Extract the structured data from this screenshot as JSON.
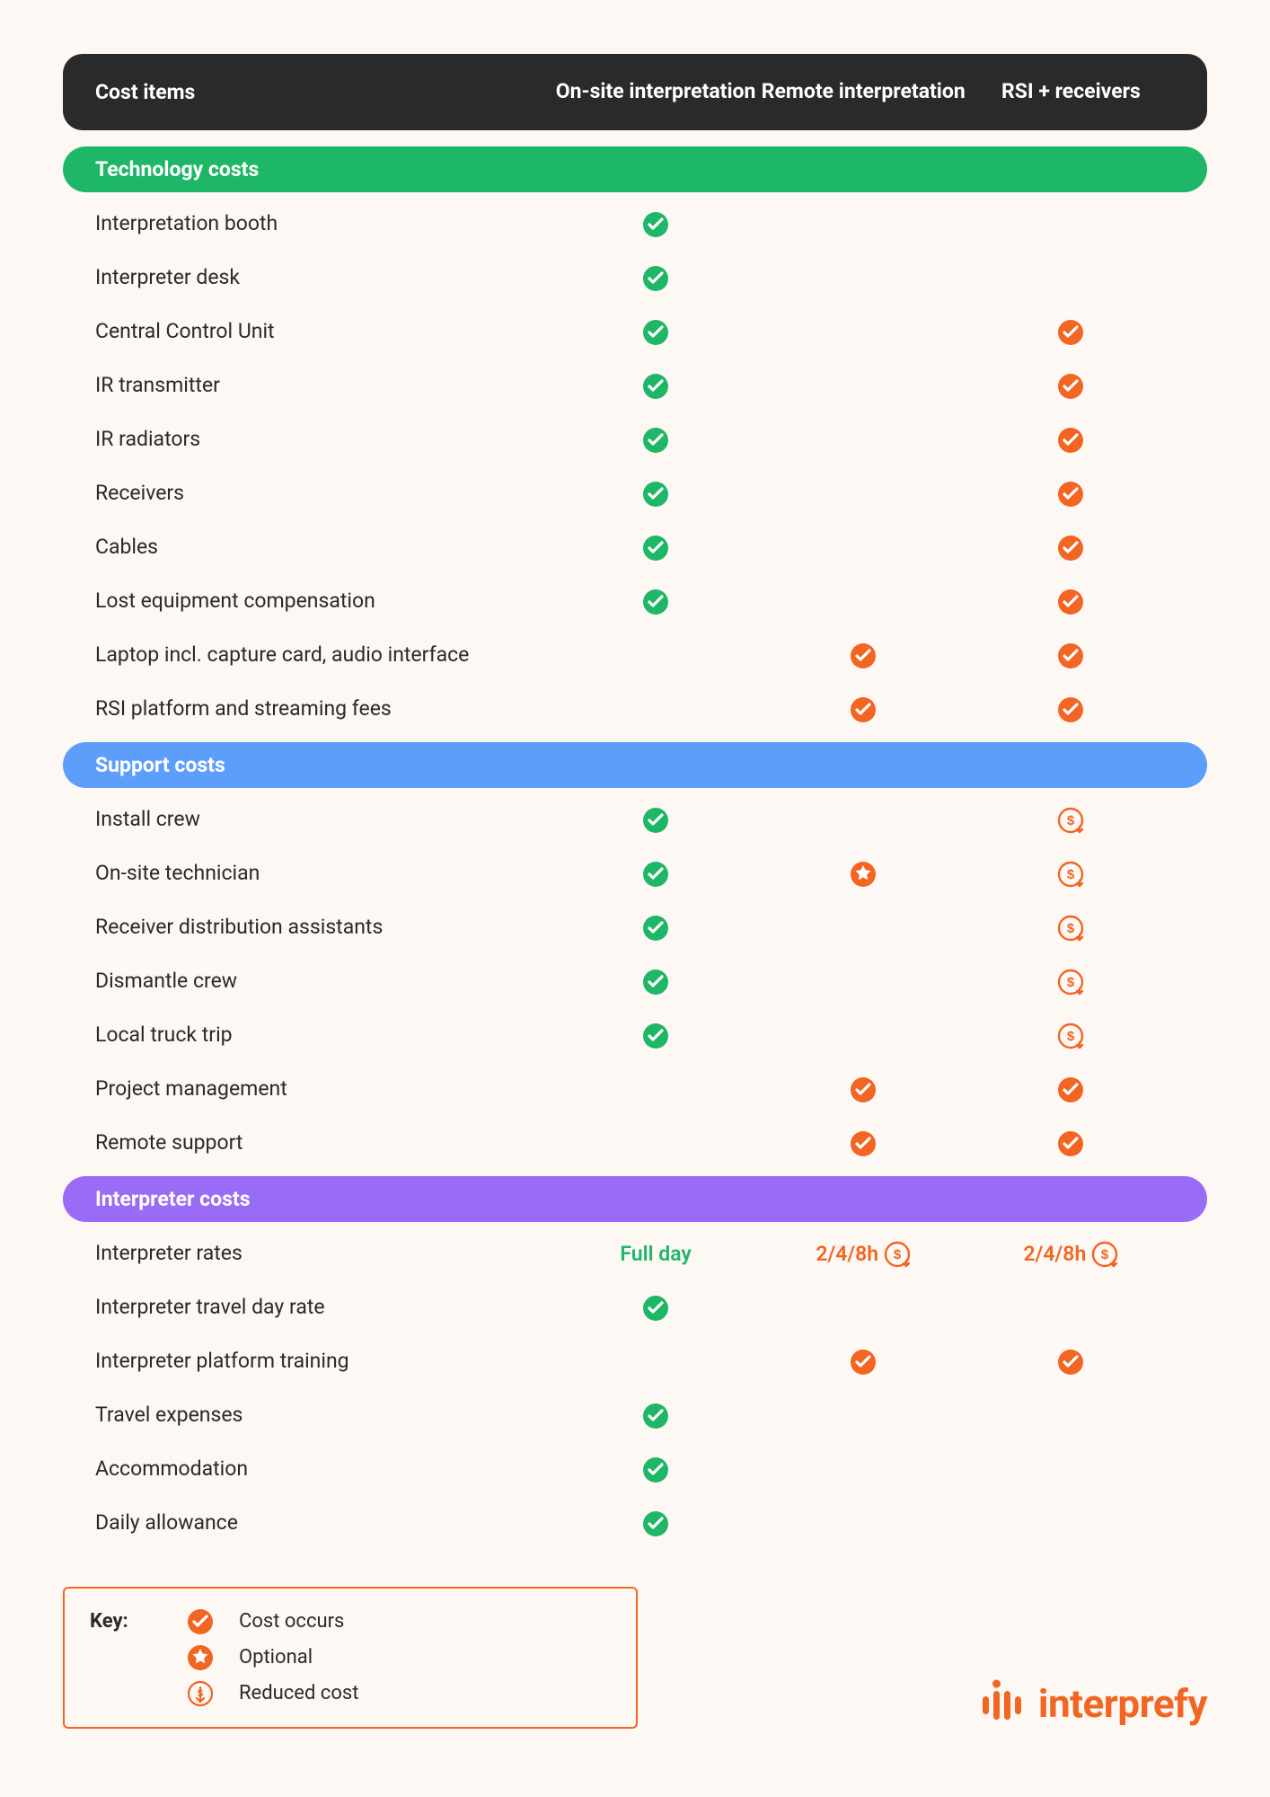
{
  "colors": {
    "bg": "#fdf8f4",
    "header_bg": "#2a2a2a",
    "header_text": "#ffffff",
    "section_tech": "#1eb768",
    "section_support": "#5e9efb",
    "section_interp": "#9a6cf5",
    "check_green": "#1eb768",
    "check_orange": "#f26522",
    "text": "#2a2a2a",
    "brand": "#f26522"
  },
  "header": {
    "col0": "Cost items",
    "col1": "On-site interpretation",
    "col2": "Remote interpretation",
    "col3": "RSI + receivers"
  },
  "sections": [
    {
      "title": "Technology costs",
      "class": "section-tech",
      "rows": [
        {
          "label": "Interpretation booth",
          "c1": {
            "t": "check-green"
          },
          "c2": null,
          "c3": null
        },
        {
          "label": "Interpreter desk",
          "c1": {
            "t": "check-green"
          },
          "c2": null,
          "c3": null
        },
        {
          "label": "Central Control Unit",
          "c1": {
            "t": "check-green"
          },
          "c2": null,
          "c3": {
            "t": "check-orange"
          }
        },
        {
          "label": "IR transmitter",
          "c1": {
            "t": "check-green"
          },
          "c2": null,
          "c3": {
            "t": "check-orange"
          }
        },
        {
          "label": "IR radiators",
          "c1": {
            "t": "check-green"
          },
          "c2": null,
          "c3": {
            "t": "check-orange"
          }
        },
        {
          "label": "Receivers",
          "c1": {
            "t": "check-green"
          },
          "c2": null,
          "c3": {
            "t": "check-orange"
          }
        },
        {
          "label": "Cables",
          "c1": {
            "t": "check-green"
          },
          "c2": null,
          "c3": {
            "t": "check-orange"
          }
        },
        {
          "label": "Lost equipment compensation",
          "c1": {
            "t": "check-green"
          },
          "c2": null,
          "c3": {
            "t": "check-orange"
          }
        },
        {
          "label": "Laptop incl. capture card, audio interface",
          "c1": null,
          "c2": {
            "t": "check-orange"
          },
          "c3": {
            "t": "check-orange"
          }
        },
        {
          "label": "RSI platform and streaming fees",
          "c1": null,
          "c2": {
            "t": "check-orange"
          },
          "c3": {
            "t": "check-orange"
          }
        }
      ]
    },
    {
      "title": "Support costs",
      "class": "section-support",
      "rows": [
        {
          "label": "Install crew",
          "c1": {
            "t": "check-green"
          },
          "c2": null,
          "c3": {
            "t": "reduced"
          }
        },
        {
          "label": "On-site technician",
          "c1": {
            "t": "check-green"
          },
          "c2": {
            "t": "optional"
          },
          "c3": {
            "t": "reduced"
          }
        },
        {
          "label": "Receiver distribution assistants",
          "c1": {
            "t": "check-green"
          },
          "c2": null,
          "c3": {
            "t": "reduced"
          }
        },
        {
          "label": "Dismantle crew",
          "c1": {
            "t": "check-green"
          },
          "c2": null,
          "c3": {
            "t": "reduced"
          }
        },
        {
          "label": "Local truck trip",
          "c1": {
            "t": "check-green"
          },
          "c2": null,
          "c3": {
            "t": "reduced"
          }
        },
        {
          "label": "Project management",
          "c1": null,
          "c2": {
            "t": "check-orange"
          },
          "c3": {
            "t": "check-orange"
          }
        },
        {
          "label": "Remote support",
          "c1": null,
          "c2": {
            "t": "check-orange"
          },
          "c3": {
            "t": "check-orange"
          }
        }
      ]
    },
    {
      "title": "Interpreter costs",
      "class": "section-interp",
      "rows": [
        {
          "label": "Interpreter rates",
          "c1": {
            "t": "text",
            "text": "Full day",
            "color": "green"
          },
          "c2": {
            "t": "text-reduced",
            "text": "2/4/8h",
            "color": "orange"
          },
          "c3": {
            "t": "text-reduced",
            "text": "2/4/8h",
            "color": "orange"
          }
        },
        {
          "label": "Interpreter travel day rate",
          "c1": {
            "t": "check-green"
          },
          "c2": null,
          "c3": null
        },
        {
          "label": "Interpreter platform training",
          "c1": null,
          "c2": {
            "t": "check-orange"
          },
          "c3": {
            "t": "check-orange"
          }
        },
        {
          "label": "Travel expenses",
          "c1": {
            "t": "check-green"
          },
          "c2": null,
          "c3": null
        },
        {
          "label": "Accommodation",
          "c1": {
            "t": "check-green"
          },
          "c2": null,
          "c3": null
        },
        {
          "label": "Daily allowance",
          "c1": {
            "t": "check-green"
          },
          "c2": null,
          "c3": null
        }
      ]
    }
  ],
  "key": {
    "title": "Key:",
    "items": [
      {
        "icon": "check-orange",
        "label": "Cost occurs"
      },
      {
        "icon": "optional",
        "label": "Optional"
      },
      {
        "icon": "reduced-outline",
        "label": "Reduced cost"
      }
    ]
  },
  "logo_text": "interprefy"
}
